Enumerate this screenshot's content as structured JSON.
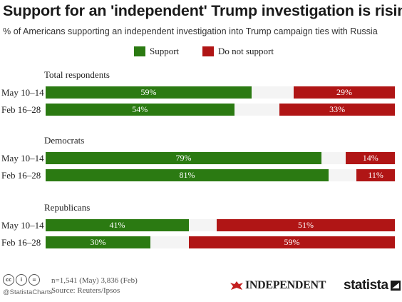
{
  "header": {
    "title": "Support for an 'independent' Trump investigation is rising",
    "subtitle": "% of Americans supporting an independent investigation into Trump campaign ties with Russia"
  },
  "colors": {
    "support": "#2b7a12",
    "do_not_support": "#b01515",
    "track": "#f4f4f4"
  },
  "chart_data": {
    "type": "bar",
    "orientation": "horizontal",
    "stacked": false,
    "xlim": [
      0,
      100
    ],
    "legend": {
      "position": "top-center",
      "entries": [
        "Support",
        "Do not support"
      ]
    },
    "series": [
      {
        "name": "Support",
        "color": "#2b7a12",
        "anchor": "left"
      },
      {
        "name": "Do not support",
        "color": "#b01515",
        "anchor": "right"
      }
    ],
    "groups": [
      {
        "name": "Total respondents",
        "rows": [
          {
            "label": "May 10–14",
            "support": 59,
            "support_label": "59%",
            "oppose": 29,
            "oppose_label": "29%"
          },
          {
            "label": "Feb 16–28",
            "support": 54,
            "support_label": "54%",
            "oppose": 33,
            "oppose_label": "33%"
          }
        ]
      },
      {
        "name": "Democrats",
        "rows": [
          {
            "label": "May 10–14",
            "support": 79,
            "support_label": "79%",
            "oppose": 14,
            "oppose_label": "14%"
          },
          {
            "label": "Feb 16–28",
            "support": 81,
            "support_label": "81%",
            "oppose": 11,
            "oppose_label": "11%"
          }
        ]
      },
      {
        "name": "Republicans",
        "rows": [
          {
            "label": "May 10–14",
            "support": 41,
            "support_label": "41%",
            "oppose": 51,
            "oppose_label": "51%"
          },
          {
            "label": "Feb 16–28",
            "support": 30,
            "support_label": "30%",
            "oppose": 59,
            "oppose_label": "59%"
          }
        ]
      }
    ]
  },
  "footer": {
    "license_icons": [
      "creative-commons-icon",
      "attribution-icon",
      "equals-icon"
    ],
    "handle": "@StatistaCharts",
    "sample_note": "n=1,541 (May) 3,836 (Feb)",
    "source": "Source: Reuters/Ipsos",
    "publisher_logo": "INDEPENDENT",
    "brand_logo": "statista"
  }
}
